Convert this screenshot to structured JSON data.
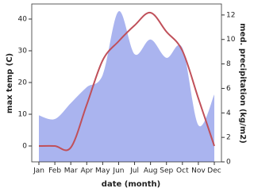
{
  "chart_data": {
    "type": "line-area",
    "x_label": "date (month)",
    "y_label": "max temp (C)",
    "y2_label": "med. precipitation (kg/m2)",
    "categories": [
      "Jan",
      "Feb",
      "Mar",
      "Apr",
      "May",
      "Jun",
      "Jul",
      "Aug",
      "Sep",
      "Oct",
      "Nov",
      "Dec"
    ],
    "series": [
      {
        "name": "med. precipitation",
        "kind": "area",
        "axis": "y2",
        "color": "#aab4ef",
        "values": [
          3.8,
          3.5,
          4.8,
          6.1,
          7.1,
          12.3,
          8.8,
          10.0,
          8.5,
          9.3,
          3.0,
          5.5
        ]
      },
      {
        "name": "max temp",
        "kind": "line",
        "axis": "y",
        "color": "#c0505a",
        "values": [
          0,
          0,
          -0.5,
          13,
          27,
          33,
          38,
          42,
          36,
          30,
          15,
          0
        ]
      }
    ],
    "ylim": [
      -5,
      44.75
    ],
    "yticks": [
      0,
      10,
      20,
      30,
      40
    ],
    "y2lim": [
      0,
      12.9
    ],
    "y2ticks": [
      0,
      2,
      4,
      6,
      8,
      10,
      12
    ]
  }
}
